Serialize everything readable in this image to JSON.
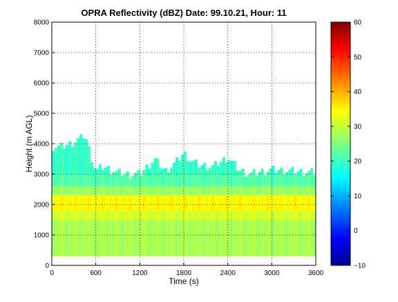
{
  "chart_data": {
    "type": "heatmap",
    "title": "OPRA Reflectivity (dBZ)  Date: 99.10.21, Hour: 11",
    "xlabel": "Time (s)",
    "ylabel": "Height (m AGL)",
    "xlim": [
      0,
      3600
    ],
    "ylim": [
      0,
      8000
    ],
    "x_ticks": [
      0,
      600,
      1200,
      1800,
      2400,
      3000,
      3600
    ],
    "y_ticks": [
      0,
      1000,
      2000,
      3000,
      4000,
      5000,
      6000,
      7000,
      8000
    ],
    "colorbar": {
      "ticks": [
        -10,
        0,
        10,
        20,
        30,
        40,
        50,
        60
      ],
      "range": [
        -10,
        60
      ],
      "colormap": "jet"
    },
    "grid": true,
    "echo_base_height": 300,
    "cloud_top_height": [
      [
        0,
        3900
      ],
      [
        150,
        3900
      ],
      [
        300,
        4050
      ],
      [
        450,
        4300
      ],
      [
        520,
        3700
      ],
      [
        600,
        3100
      ],
      [
        700,
        3250
      ],
      [
        800,
        3150
      ],
      [
        900,
        3050
      ],
      [
        1000,
        3000
      ],
      [
        1200,
        3000
      ],
      [
        1400,
        3500
      ],
      [
        1550,
        3100
      ],
      [
        1700,
        3400
      ],
      [
        1800,
        3700
      ],
      [
        1900,
        3450
      ],
      [
        2000,
        3300
      ],
      [
        2200,
        3250
      ],
      [
        2400,
        3550
      ],
      [
        2550,
        3150
      ],
      [
        2700,
        3000
      ],
      [
        3000,
        3150
      ],
      [
        3300,
        3100
      ],
      [
        3600,
        3050
      ]
    ],
    "reflectivity_layers": [
      {
        "bottom": 300,
        "top": 1500,
        "dbz": 28
      },
      {
        "bottom": 1500,
        "top": 1800,
        "dbz": 31
      },
      {
        "bottom": 1800,
        "top": 2300,
        "dbz": 34
      },
      {
        "bottom": 2300,
        "top": 2600,
        "dbz": 27
      },
      {
        "bottom": 2600,
        "top": 3000,
        "dbz": 22
      },
      {
        "bottom": 3000,
        "top": 4300,
        "dbz": 20
      }
    ]
  }
}
